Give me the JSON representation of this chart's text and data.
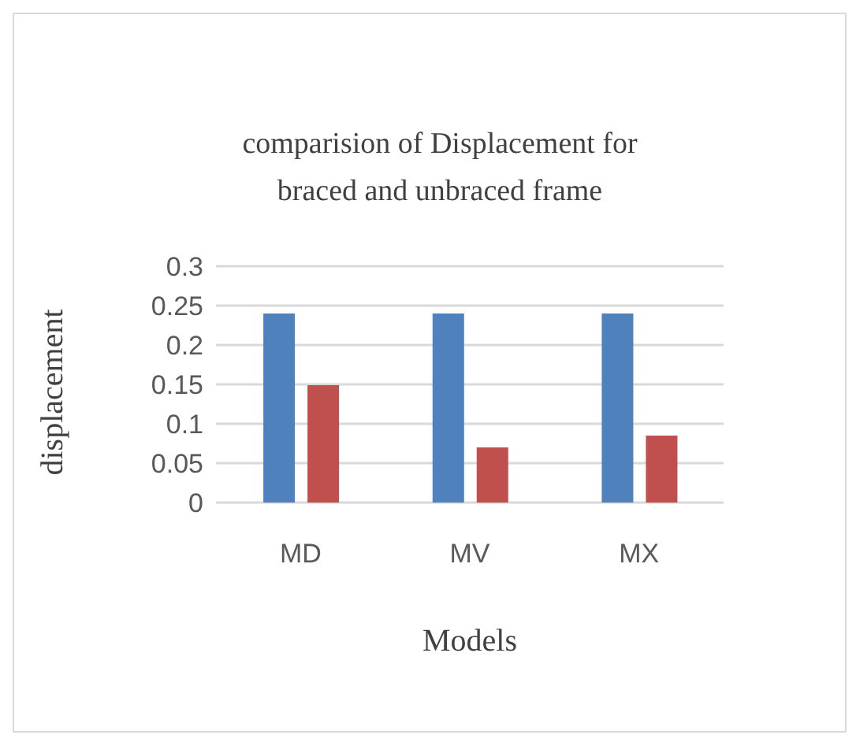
{
  "chart_data": {
    "type": "bar",
    "title": "comparision of Displacement for braced and unbraced frame",
    "xlabel": "Models",
    "ylabel": "displacement",
    "categories": [
      "MD",
      "MV",
      "MX"
    ],
    "series": [
      {
        "color": "#4f81bd",
        "values": [
          0.24,
          0.24,
          0.24
        ]
      },
      {
        "color": "#c0504d",
        "values": [
          0.149,
          0.07,
          0.085
        ]
      }
    ],
    "ylim": [
      0,
      0.3
    ],
    "yticks": [
      0,
      0.05,
      0.1,
      0.15,
      0.2,
      0.25,
      0.3
    ],
    "grid": "y",
    "legend": false
  }
}
